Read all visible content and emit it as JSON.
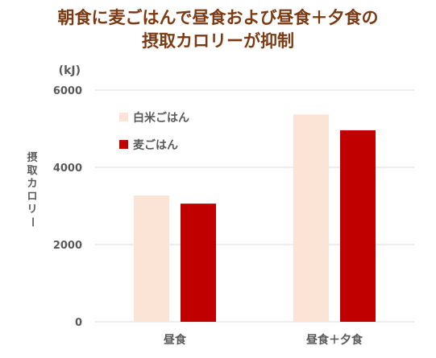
{
  "title_line1": "朝食に麦ごはんで昼食および昼食＋夕食の",
  "title_line2": "摂取カロリーが抑制",
  "chart_data": {
    "type": "bar",
    "title": "朝食に麦ごはんで昼食および昼食＋夕食の摂取カロリーが抑制",
    "unit": "(kJ)",
    "ylabel": "摂取カロリー",
    "xlabel": "",
    "ylim": [
      0,
      6000
    ],
    "yticks": [
      0,
      2000,
      4000,
      6000
    ],
    "grid": true,
    "legend_position": "upper-left",
    "categories": [
      "昼食",
      "昼食＋夕食"
    ],
    "series": [
      {
        "name": "白米ごはん",
        "color": "#fbe3d6",
        "values": [
          3270,
          5370
        ]
      },
      {
        "name": "麦ごはん",
        "color": "#c00000",
        "values": [
          3060,
          4960
        ]
      }
    ]
  },
  "colors": {
    "title": "#7b3a12",
    "axis_text": "#595959",
    "grid": "#d9d9d9"
  }
}
